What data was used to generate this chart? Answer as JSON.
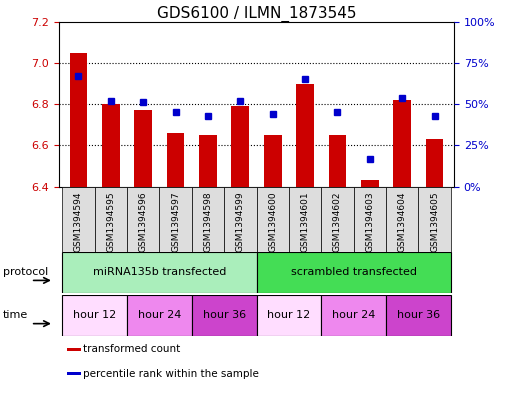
{
  "title": "GDS6100 / ILMN_1873545",
  "samples": [
    "GSM1394594",
    "GSM1394595",
    "GSM1394596",
    "GSM1394597",
    "GSM1394598",
    "GSM1394599",
    "GSM1394600",
    "GSM1394601",
    "GSM1394602",
    "GSM1394603",
    "GSM1394604",
    "GSM1394605"
  ],
  "transformed_counts": [
    7.05,
    6.8,
    6.77,
    6.66,
    6.65,
    6.79,
    6.65,
    6.9,
    6.65,
    6.43,
    6.82,
    6.63
  ],
  "percentile_ranks": [
    67,
    52,
    51,
    45,
    43,
    52,
    44,
    65,
    45,
    17,
    54,
    43
  ],
  "ylim_left": [
    6.4,
    7.2
  ],
  "ylim_right": [
    0,
    100
  ],
  "yticks_left": [
    6.4,
    6.6,
    6.8,
    7.0,
    7.2
  ],
  "yticks_right": [
    0,
    25,
    50,
    75,
    100
  ],
  "ytick_labels_right": [
    "0%",
    "25%",
    "50%",
    "75%",
    "100%"
  ],
  "bar_color": "#cc0000",
  "dot_color": "#0000cc",
  "bar_bottom": 6.4,
  "protocol_groups": [
    {
      "label": "miRNA135b transfected",
      "start": 0,
      "end": 6,
      "color": "#aaeebb"
    },
    {
      "label": "scrambled transfected",
      "start": 6,
      "end": 12,
      "color": "#44dd55"
    }
  ],
  "time_groups": [
    {
      "label": "hour 12",
      "start": 0,
      "end": 2,
      "color": "#ffddff"
    },
    {
      "label": "hour 24",
      "start": 2,
      "end": 4,
      "color": "#ee88ee"
    },
    {
      "label": "hour 36",
      "start": 4,
      "end": 6,
      "color": "#cc44cc"
    },
    {
      "label": "hour 12",
      "start": 6,
      "end": 8,
      "color": "#ffddff"
    },
    {
      "label": "hour 24",
      "start": 8,
      "end": 10,
      "color": "#ee88ee"
    },
    {
      "label": "hour 36",
      "start": 10,
      "end": 12,
      "color": "#cc44cc"
    }
  ],
  "legend_items": [
    {
      "label": "transformed count",
      "color": "#cc0000"
    },
    {
      "label": "percentile rank within the sample",
      "color": "#0000cc"
    }
  ],
  "axis_label_color_left": "#cc0000",
  "axis_label_color_right": "#0000cc",
  "title_fontsize": 11,
  "sample_box_color": "#dddddd"
}
